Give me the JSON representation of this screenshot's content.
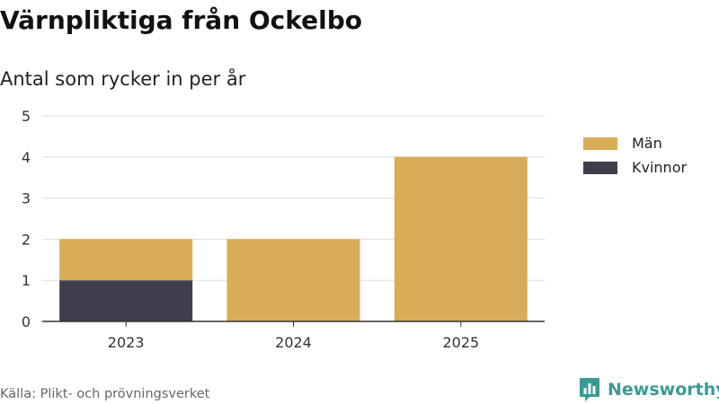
{
  "title": "Värnpliktiga från Ockelbo",
  "subtitle": "Antal som rycker in per år",
  "source": "Källa: Plikt- och prövningsverket",
  "brand": {
    "name": "Newsworthy",
    "icon": "newsworthy-logo-icon",
    "color": "#3a9a93"
  },
  "colors": {
    "man": "#d9ad58",
    "kvinnor": "#403e4d",
    "grid": "#dddddd",
    "axis": "#333333"
  },
  "chart_data": {
    "type": "bar",
    "stacked": true,
    "title": "Värnpliktiga från Ockelbo",
    "subtitle": "Antal som rycker in per år",
    "xlabel": "",
    "ylabel": "",
    "categories": [
      "2023",
      "2024",
      "2025"
    ],
    "series": [
      {
        "name": "Kvinnor",
        "values": [
          1,
          0,
          0
        ],
        "color": "#403e4d"
      },
      {
        "name": "Män",
        "values": [
          1,
          2,
          4
        ],
        "color": "#d9ad58"
      }
    ],
    "ylim": [
      0,
      5
    ],
    "yticks": [
      "0",
      "1",
      "2",
      "3",
      "4",
      "5"
    ],
    "grid": true,
    "legend": {
      "position": "right",
      "entries": [
        "Män",
        "Kvinnor"
      ]
    }
  }
}
